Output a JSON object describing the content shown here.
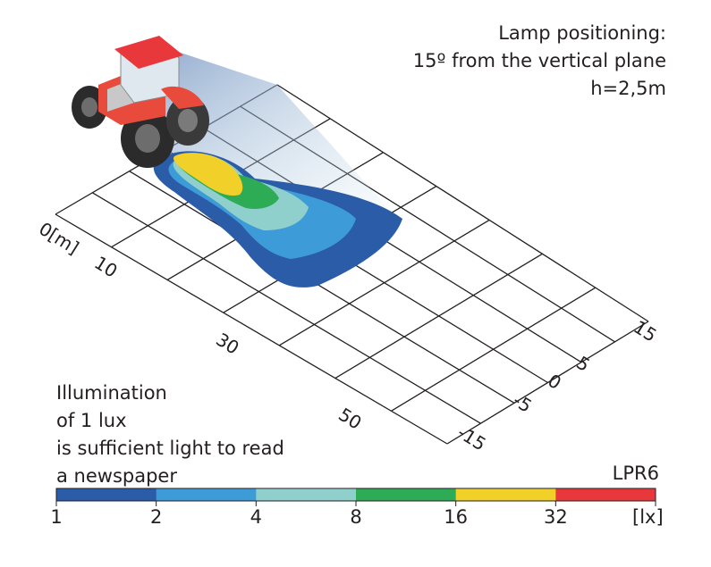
{
  "lamp_info": {
    "line1": "Lamp positioning:",
    "line2": "15º from the vertical plane",
    "line3": "h=2,5m"
  },
  "lux_note": {
    "line1": "Illumination",
    "line2": "of 1 lux",
    "line3": "is sufficient light to read",
    "line4": "a newspaper"
  },
  "model": "LPR6",
  "distance_axis": {
    "labels": [
      "0[m]",
      "10",
      "30",
      "50"
    ]
  },
  "lateral_axis": {
    "labels": [
      "15",
      "5",
      "0",
      "-5",
      "-15"
    ]
  },
  "color_scale": {
    "unit": "[lx]",
    "stops": [
      {
        "label": "1",
        "color": "#2a5ca8"
      },
      {
        "label": "2",
        "color": "#3d9bd8"
      },
      {
        "label": "4",
        "color": "#8fd0cd"
      },
      {
        "label": "8",
        "color": "#2eab55"
      },
      {
        "label": "16",
        "color": "#f2d02a"
      },
      {
        "label": "32",
        "color": "#e8383c"
      }
    ]
  },
  "icons": {
    "vehicle": "tractor-icon"
  }
}
